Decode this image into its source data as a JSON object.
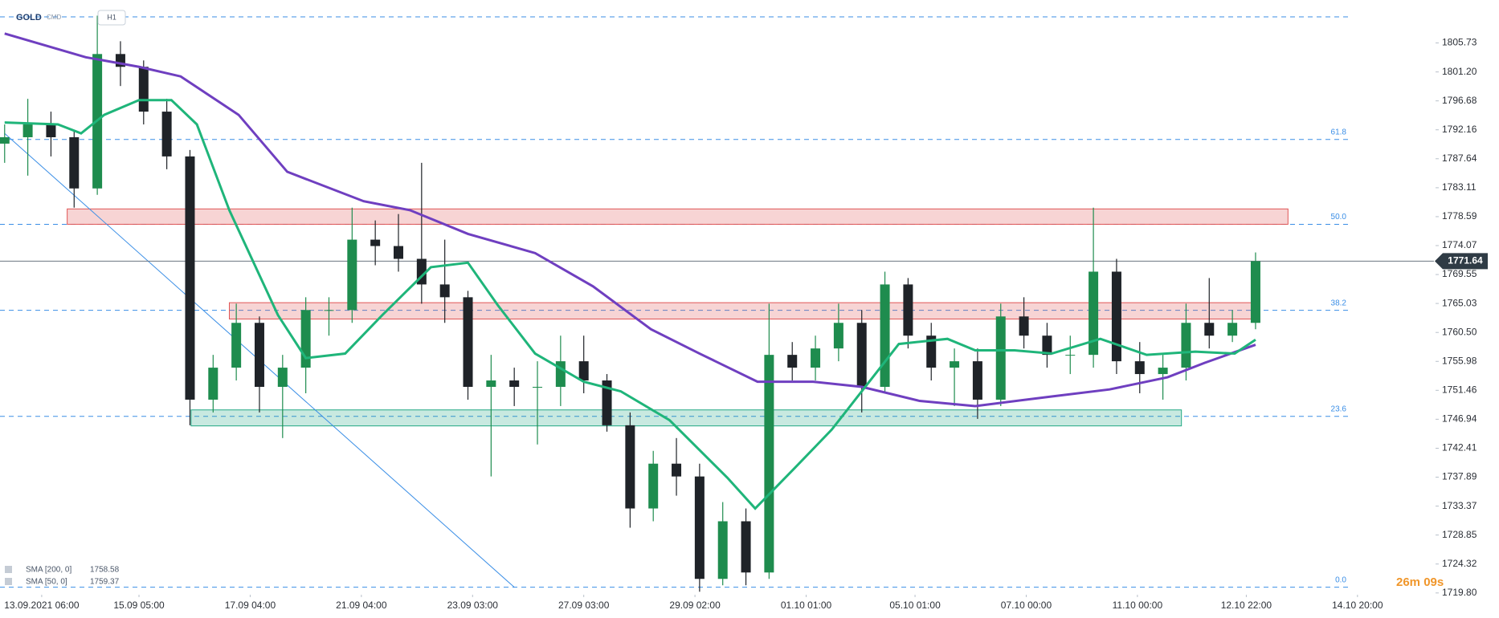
{
  "chart_data": {
    "type": "candlestick",
    "symbol": "GOLD",
    "market": "CMD",
    "timeframe": "H1",
    "countdown": "26m 09s",
    "up_color": "#1e8c4e",
    "down_color": "#1f2328",
    "x": [
      0,
      10,
      20,
      30,
      40,
      50,
      60,
      70,
      80,
      90,
      100,
      110,
      120,
      130,
      140,
      150,
      160,
      170,
      180,
      190,
      200,
      210,
      220,
      230,
      240,
      250,
      260,
      270,
      280,
      290,
      300,
      310,
      320,
      330,
      340,
      350,
      360,
      370,
      380,
      390,
      400,
      410,
      420,
      430,
      440,
      450,
      460,
      470,
      480,
      490,
      500,
      510,
      520,
      530,
      540
    ],
    "open": [
      1790,
      1791,
      1793,
      1791,
      1783,
      1804,
      1802,
      1795,
      1788,
      1750,
      1755,
      1762,
      1752,
      1755,
      1764,
      1764,
      1775,
      1774,
      1772,
      1768,
      1766,
      1752,
      1753,
      1752,
      1752,
      1756,
      1753,
      1746,
      1733,
      1740,
      1738,
      1722,
      1731,
      1723,
      1757,
      1755,
      1758,
      1762,
      1752,
      1768,
      1760,
      1755,
      1756,
      1750,
      1763,
      1760,
      1757,
      1757,
      1770,
      1756,
      1754,
      1755,
      1762,
      1760,
      1762
    ],
    "high": [
      1793,
      1797,
      1795,
      1792,
      1810,
      1806,
      1803,
      1797,
      1789,
      1757,
      1765,
      1763,
      1757,
      1766,
      1766,
      1780,
      1778,
      1779,
      1787,
      1775,
      1767,
      1757,
      1755,
      1756,
      1760,
      1760,
      1754,
      1748,
      1742,
      1744,
      1740,
      1734,
      1733,
      1765,
      1759,
      1760,
      1765,
      1764,
      1770,
      1769,
      1762,
      1758,
      1758,
      1765,
      1766,
      1762,
      1760,
      1780,
      1772,
      1759,
      1757,
      1765,
      1769,
      1764,
      1773
    ],
    "low": [
      1787,
      1785,
      1788,
      1780,
      1782,
      1799,
      1793,
      1786,
      1746,
      1748,
      1753,
      1748,
      1744,
      1751,
      1760,
      1762,
      1771,
      1770,
      1765,
      1762,
      1750,
      1738,
      1749,
      1743,
      1749,
      1751,
      1745,
      1730,
      1731,
      1735,
      1720,
      1721,
      1721,
      1722,
      1753,
      1753,
      1756,
      1748,
      1751,
      1758,
      1753,
      1749,
      1747,
      1749,
      1758,
      1755,
      1754,
      1755,
      1754,
      1751,
      1750,
      1753,
      1758,
      1759,
      1761
    ],
    "close": [
      1791,
      1793,
      1791,
      1783,
      1804,
      1802,
      1795,
      1788,
      1750,
      1755,
      1762,
      1752,
      1755,
      1764,
      1764,
      1775,
      1774,
      1772,
      1768,
      1766,
      1752,
      1753,
      1752,
      1752,
      1756,
      1753,
      1746,
      1733,
      1740,
      1738,
      1722,
      1731,
      1723,
      1757,
      1755,
      1758,
      1762,
      1752,
      1768,
      1760,
      1755,
      1756,
      1750,
      1763,
      1760,
      1757,
      1757,
      1770,
      1756,
      1754,
      1755,
      1762,
      1760,
      1762,
      1771.64
    ],
    "ylim": [
      1719.65,
      1812.44
    ],
    "yticks": [
      1805.73,
      {
        "value": 1801.2,
        "label": "1801.20"
      },
      1796.68,
      1792.16,
      1787.64,
      1783.11,
      1778.59,
      1774.07,
      1769.55,
      1765.03,
      {
        "value": 1760.5,
        "label": "1760.50"
      },
      1755.98,
      1751.46,
      1746.94,
      1742.41,
      1737.89,
      1733.37,
      1728.85,
      1724.32,
      {
        "value": 1719.8,
        "label": "1719.80"
      }
    ],
    "xlim": [
      -2,
      617
    ],
    "xticks": [
      {
        "value": 16,
        "label": "13.09.2021  06:00"
      },
      {
        "value": 58,
        "label": "15.09  05:00"
      },
      {
        "value": 106,
        "label": "17.09  04:00"
      },
      {
        "value": 154,
        "label": "21.09  04:00"
      },
      {
        "value": 202,
        "label": "23.09  03:00"
      },
      {
        "value": 250,
        "label": "27.09  03:00"
      },
      {
        "value": 298,
        "label": "29.09  02:00"
      },
      {
        "value": 346,
        "label": "01.10  01:00"
      },
      {
        "value": 393,
        "label": "05.10  01:00"
      },
      {
        "value": 441,
        "label": "07.10  00:00"
      },
      {
        "value": 489,
        "label": "11.10  00:00"
      },
      {
        "value": 536,
        "label": "12.10  22:00"
      },
      {
        "value": 584,
        "label": "14.10  20:00"
      }
    ],
    "indicators": [
      {
        "name": "SMA [200, 0]",
        "color": "#6f3fc0",
        "x": [
          0,
          35,
          58,
          76,
          101,
          122,
          155,
          175,
          200,
          229,
          254,
          279,
          300,
          325,
          349,
          370,
          395,
          419,
          452,
          477,
          502,
          518,
          540
        ],
        "values": [
          1807.2,
          1803.5,
          1802,
          1800.5,
          1794.5,
          1785.6,
          1781,
          1779.6,
          1775.9,
          1772.9,
          1767.7,
          1761,
          1757.2,
          1752.8,
          1752.8,
          1752,
          1749.8,
          1749,
          1750.5,
          1751.6,
          1753.5,
          1755.75,
          1758.58
        ]
      },
      {
        "name": "SMA [50, 0]",
        "color": "#1fb57a",
        "x": [
          0,
          23,
          33,
          43,
          58,
          72,
          83,
          97,
          118,
          130,
          147,
          163,
          184,
          200,
          213,
          229,
          250,
          266,
          287,
          312,
          324,
          341,
          357,
          370,
          386,
          407,
          419,
          436,
          452,
          473,
          493,
          514,
          531,
          540
        ],
        "values": [
          1793.3,
          1793,
          1791.6,
          1794.5,
          1796.8,
          1796.8,
          1793,
          1779.6,
          1763.2,
          1756.5,
          1757.2,
          1763.2,
          1770.7,
          1771.4,
          1764.7,
          1757.2,
          1752.8,
          1751.3,
          1746.8,
          1737.8,
          1733,
          1739.3,
          1745.3,
          1751.3,
          1758.7,
          1759.5,
          1757.7,
          1757.7,
          1757.2,
          1759.5,
          1757,
          1757.5,
          1757.2,
          1759.37
        ]
      }
    ],
    "trendline": {
      "color": "#3a8ee6",
      "x": [
        0,
        220
      ],
      "values": [
        1791.6,
        1720.7
      ]
    },
    "zones": [
      {
        "color": "#e05555",
        "x": [
          27,
          554
        ],
        "range": [
          1777.4,
          1779.8
        ]
      },
      {
        "color": "#e05555",
        "x": [
          97,
          539
        ],
        "range": [
          1762.6,
          1765.15
        ]
      },
      {
        "color": "#22a884",
        "x": [
          80.5,
          508
        ],
        "range": [
          1745.9,
          1748.4
        ]
      }
    ],
    "fib_levels": [
      {
        "value": 1809.8,
        "label": null
      },
      {
        "value": 1790.66,
        "label": "61.8"
      },
      {
        "value": 1777.4,
        "label": "50.0"
      },
      {
        "value": 1763.96,
        "label": "38.2"
      },
      {
        "value": 1747.4,
        "label": "23.6"
      },
      {
        "value": 1720.7,
        "label": "0.0"
      }
    ]
  }
}
